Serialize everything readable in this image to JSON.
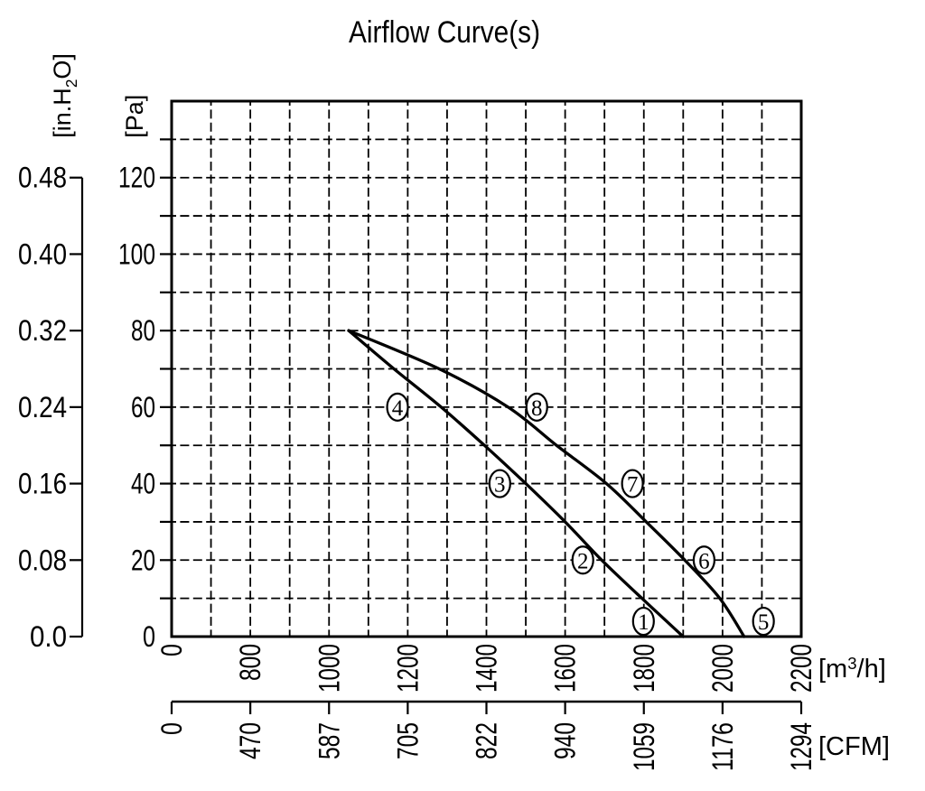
{
  "page": {
    "background": "#ffffff",
    "ink_color": "#000000"
  },
  "chart_data": {
    "type": "line",
    "title": "Airflow Curve(s)",
    "grid": "dashed",
    "legend_position": "none",
    "y_axis_pa": {
      "unit_label": "[Pa]",
      "ticks": [
        120,
        100,
        80,
        60,
        40,
        20,
        0
      ],
      "minor_step": 10,
      "range": [
        0,
        140
      ]
    },
    "y_axis_inh2o": {
      "unit_label": "[in.H2O]",
      "tick_labels": [
        "0.48",
        "0.40",
        "0.32",
        "0.24",
        "0.16",
        "0.08",
        "0.0"
      ]
    },
    "x_axis_m3h": {
      "unit_label": "[m3/h]",
      "ticks": [
        0,
        800,
        1000,
        1200,
        1400,
        1600,
        1800,
        2000,
        2200
      ],
      "range": [
        0,
        2200
      ],
      "scale_note": "first division spans 0-800, then 200 per division"
    },
    "x_axis_cfm": {
      "unit_label": "[CFM]",
      "tick_labels": [
        "0",
        "470",
        "587",
        "705",
        "822",
        "940",
        "1059",
        "1176",
        "1294"
      ]
    },
    "series": [
      {
        "name": "airflow-curve-1-2-3-4",
        "points": [
          [
            1050,
            80
          ],
          [
            1165,
            70
          ],
          [
            1285,
            60
          ],
          [
            1395,
            50
          ],
          [
            1500,
            40
          ],
          [
            1600,
            30
          ],
          [
            1693,
            20
          ],
          [
            1795,
            10
          ],
          [
            1900,
            0
          ]
        ],
        "markers": [
          {
            "label": "4",
            "x": 1174,
            "y": 60
          },
          {
            "label": "3",
            "x": 1434,
            "y": 40
          },
          {
            "label": "2",
            "x": 1645,
            "y": 20
          },
          {
            "label": "1",
            "x": 1799,
            "y": 4
          }
        ]
      },
      {
        "name": "airflow-curve-5-6-7-8",
        "points": [
          [
            1050,
            80
          ],
          [
            1280,
            70
          ],
          [
            1455,
            60
          ],
          [
            1578,
            50
          ],
          [
            1705,
            40
          ],
          [
            1806,
            30
          ],
          [
            1904,
            20
          ],
          [
            1993,
            10
          ],
          [
            2055,
            0
          ]
        ],
        "markers": [
          {
            "label": "8",
            "x": 1528,
            "y": 60
          },
          {
            "label": "7",
            "x": 1771,
            "y": 40
          },
          {
            "label": "6",
            "x": 1953,
            "y": 20
          },
          {
            "label": "5",
            "x": 2104,
            "y": 4
          }
        ]
      }
    ]
  }
}
